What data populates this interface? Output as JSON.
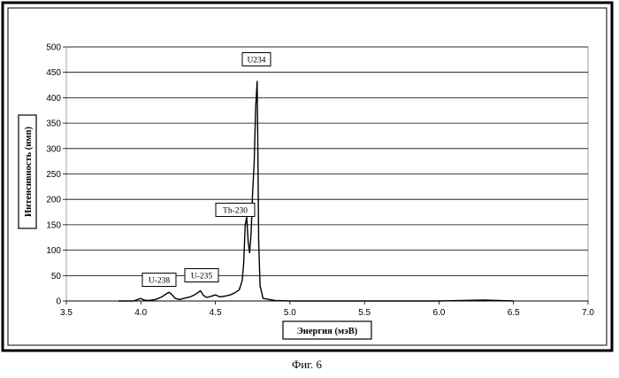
{
  "caption": "Фиг. 6",
  "chart_data": {
    "type": "line",
    "title": "",
    "xlabel": "Энергия (мэВ)",
    "ylabel": "Интенсивность (имп)",
    "xlim": [
      3.5,
      7.0
    ],
    "ylim": [
      0,
      500
    ],
    "x_ticks": [
      "3.5",
      "4.0",
      "4.5",
      "5.0",
      "5.5",
      "6.0",
      "6.5",
      "7.0"
    ],
    "y_ticks": [
      "0",
      "50",
      "100",
      "150",
      "200",
      "250",
      "300",
      "350",
      "400",
      "450",
      "500"
    ],
    "grid": "horizontal",
    "annotations": [
      {
        "text": "U-238",
        "x": 4.19,
        "y": 12
      },
      {
        "text": "U-235",
        "x": 4.4,
        "y": 16
      },
      {
        "text": "Th-230",
        "x": 4.69,
        "y": 155
      },
      {
        "text": "U234",
        "x": 4.77,
        "y": 430
      }
    ],
    "series": [
      {
        "x": [
          3.85,
          3.95,
          3.98,
          4.0,
          4.02,
          4.05,
          4.1,
          4.14,
          4.17,
          4.19,
          4.21,
          4.23,
          4.26,
          4.3,
          4.33,
          4.36,
          4.38,
          4.4,
          4.42,
          4.44,
          4.47,
          4.5,
          4.53,
          4.57,
          4.6,
          4.63,
          4.66,
          4.68,
          4.69,
          4.7,
          4.71,
          4.72,
          4.73,
          4.74,
          4.75,
          4.76,
          4.77,
          4.78,
          4.785,
          4.79,
          4.8,
          4.82,
          4.9,
          5.0,
          5.2,
          5.6,
          6.0,
          6.3,
          6.5
        ],
        "y": [
          0,
          0,
          3,
          5,
          2,
          1,
          3,
          8,
          14,
          17,
          12,
          5,
          3,
          6,
          8,
          12,
          16,
          20,
          11,
          7,
          9,
          12,
          8,
          10,
          12,
          16,
          22,
          40,
          75,
          150,
          165,
          115,
          95,
          135,
          215,
          270,
          380,
          432,
          300,
          120,
          30,
          5,
          1,
          0,
          0,
          0,
          0,
          2,
          0
        ]
      }
    ]
  }
}
